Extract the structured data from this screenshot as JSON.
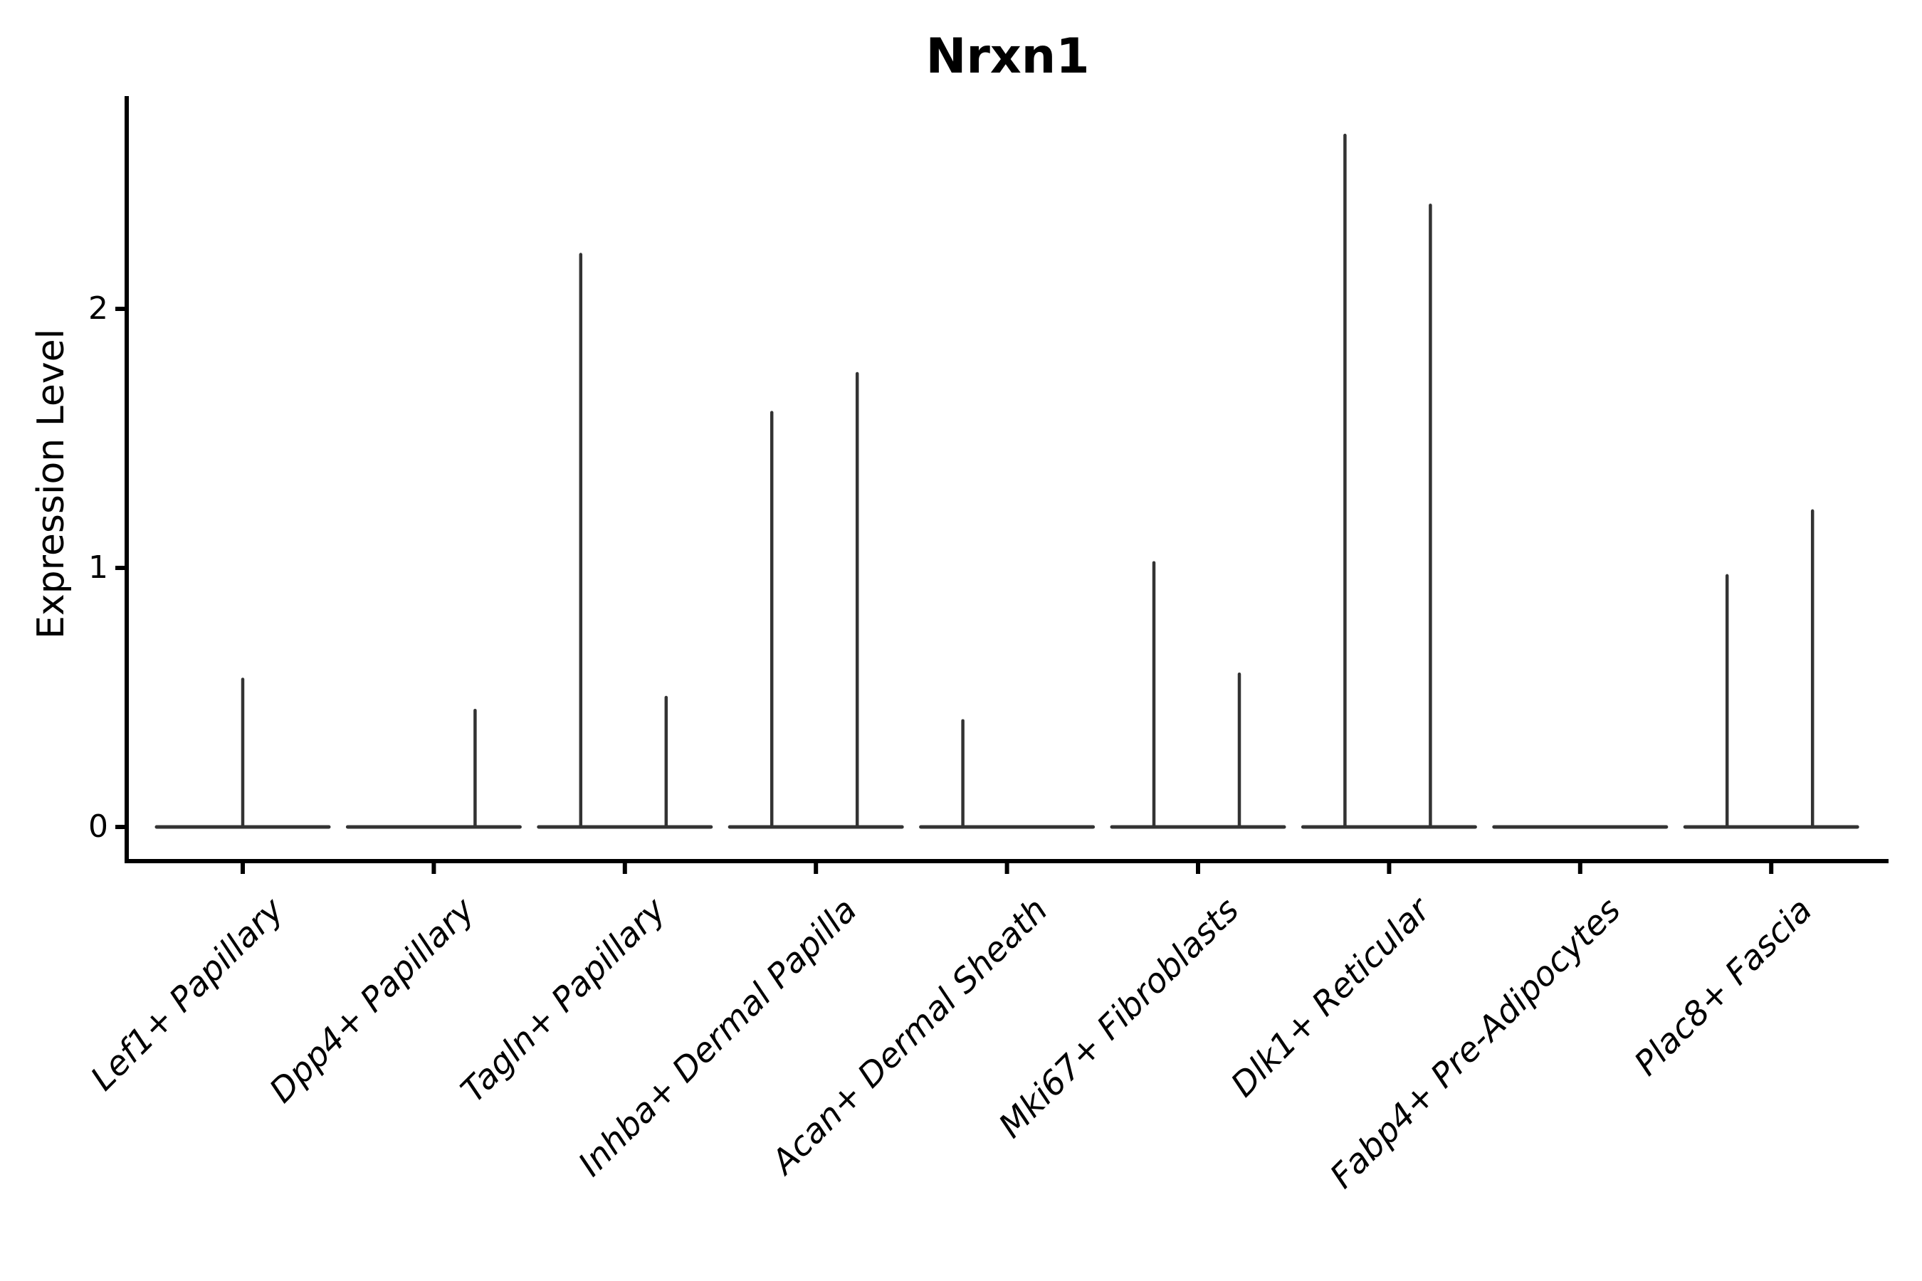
{
  "chart_data": {
    "type": "violin",
    "title": "Nrxn1",
    "ylabel": "Expression Level",
    "xlabel": "",
    "y_ticks": [
      0,
      1,
      2
    ],
    "ylim": [
      0,
      2.82
    ],
    "grid": false,
    "legend": "none",
    "style": {
      "violin_ink": "#333333",
      "axis_ink": "#000000",
      "background": "#ffffff",
      "x_label_style": "italic, rotated 45deg",
      "title_style": "bold"
    },
    "categories": [
      "Lef1+ Papillary",
      "Dpp4+ Papillary",
      "Tagln+ Papillary",
      "Inhba+ Dermal Papilla",
      "Acan+ Dermal Sheath",
      "Mki67+ Fibroblasts",
      "Dlk1+ Reticular",
      "Fabp4+ Pre-Adipocytes",
      "Plac8+ Fascia"
    ],
    "violins": [
      {
        "category": "Lef1+ Papillary",
        "baseline": 0,
        "spikes": [
          {
            "position": "center",
            "max": 0.57
          }
        ]
      },
      {
        "category": "Dpp4+ Papillary",
        "baseline": 0,
        "spikes": [
          {
            "position": "right",
            "max": 0.45
          }
        ]
      },
      {
        "category": "Tagln+ Papillary",
        "baseline": 0,
        "spikes": [
          {
            "position": "left",
            "max": 2.21
          },
          {
            "position": "right",
            "max": 0.5
          }
        ]
      },
      {
        "category": "Inhba+ Dermal Papilla",
        "baseline": 0,
        "spikes": [
          {
            "position": "left",
            "max": 1.6
          },
          {
            "position": "right",
            "max": 1.75
          }
        ]
      },
      {
        "category": "Acan+ Dermal Sheath",
        "baseline": 0,
        "spikes": [
          {
            "position": "left",
            "max": 0.41
          }
        ]
      },
      {
        "category": "Mki67+ Fibroblasts",
        "baseline": 0,
        "spikes": [
          {
            "position": "left",
            "max": 1.02
          },
          {
            "position": "right",
            "max": 0.59
          }
        ]
      },
      {
        "category": "Dlk1+ Reticular",
        "baseline": 0,
        "spikes": [
          {
            "position": "left",
            "max": 2.67
          },
          {
            "position": "right",
            "max": 2.4
          }
        ]
      },
      {
        "category": "Fabp4+ Pre-Adipocytes",
        "baseline": 0,
        "spikes": []
      },
      {
        "category": "Plac8+ Fascia",
        "baseline": 0,
        "spikes": [
          {
            "position": "left",
            "max": 0.97
          },
          {
            "position": "right",
            "max": 1.22
          }
        ]
      }
    ]
  }
}
